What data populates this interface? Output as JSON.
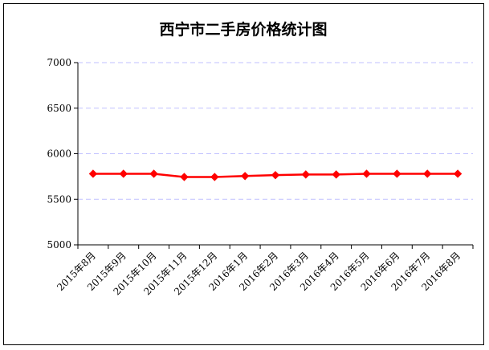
{
  "chart_data": {
    "type": "line",
    "title": "西宁市二手房价格统计图",
    "xlabel": "",
    "ylabel": "",
    "categories": [
      "2015年8月",
      "2015年9月",
      "2015年10月",
      "2015年11月",
      "2015年12月",
      "2016年1月",
      "2016年2月",
      "2016年3月",
      "2016年4月",
      "2016年5月",
      "2016年6月",
      "2016年7月",
      "2016年8月"
    ],
    "series": [
      {
        "values": [
          5780,
          5780,
          5780,
          5745,
          5745,
          5755,
          5765,
          5772,
          5772,
          5780,
          5780,
          5780,
          5780
        ],
        "color": "#ff0000",
        "marker": "diamond"
      }
    ],
    "ylim": [
      5000,
      7000
    ],
    "yticks": [
      5000,
      5500,
      6000,
      6500,
      7000
    ],
    "ytick_labels": [
      "5000",
      "5500",
      "6000",
      "6500",
      "7000"
    ],
    "grid": true,
    "grid_color": "#c0c0ff",
    "grid_style": "dashed",
    "legend": "none"
  }
}
